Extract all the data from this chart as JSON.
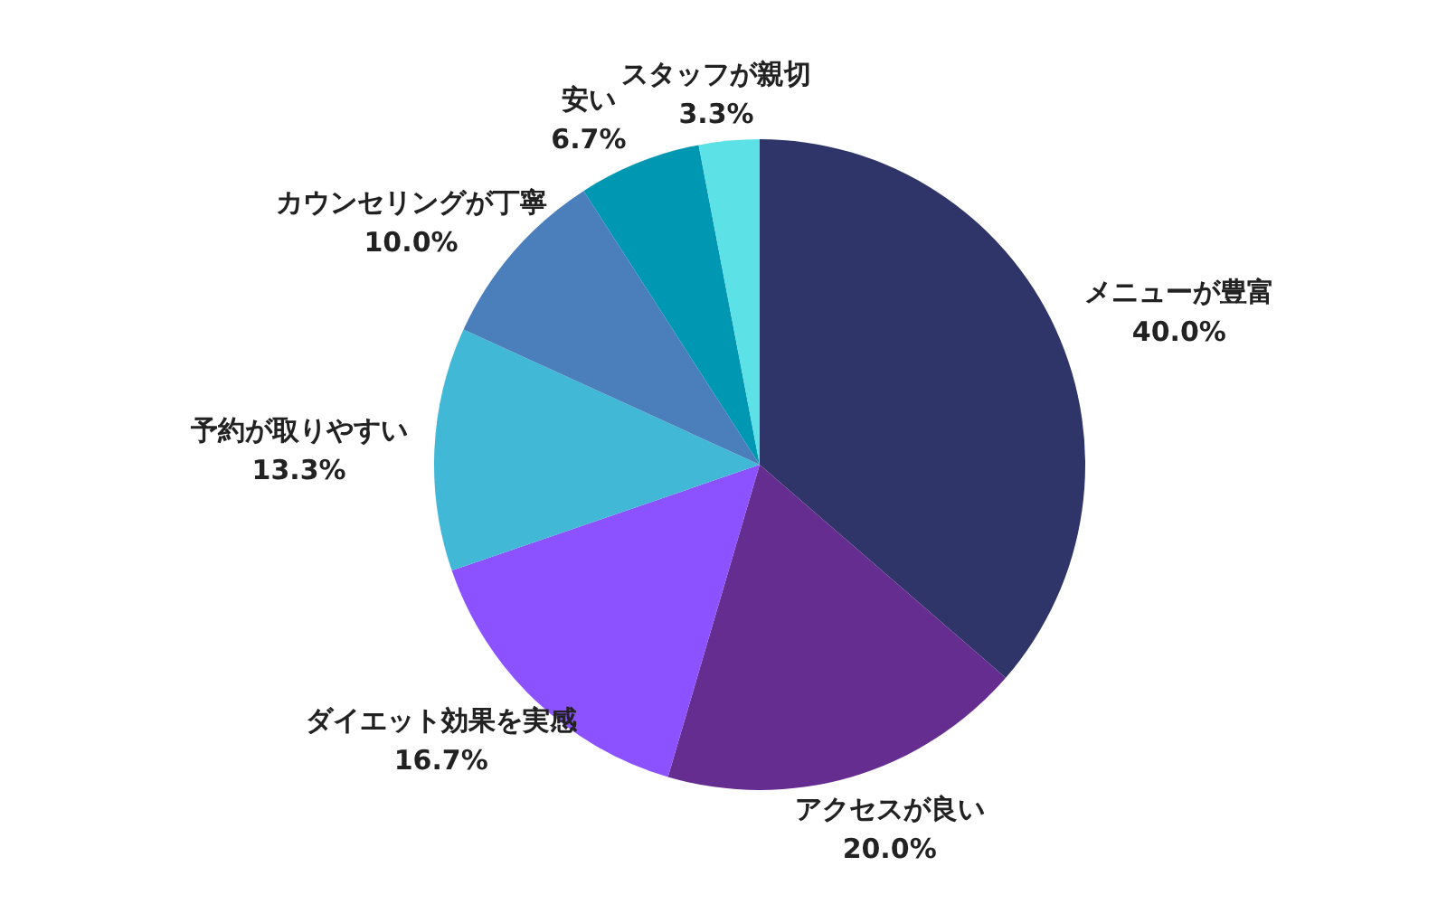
{
  "chart_data": {
    "type": "pie",
    "categories": [
      "メニューが豊富",
      "アクセスが良い",
      "ダイエット効果を実感",
      "予約が取りやすい",
      "カウンセリングが丁寧",
      "安い",
      "スタッフが親切"
    ],
    "values": [
      40.0,
      20.0,
      16.7,
      13.3,
      10.0,
      6.7,
      3.3
    ],
    "value_labels": [
      "40.0%",
      "20.0%",
      "16.7%",
      "13.3%",
      "10.0%",
      "6.7%",
      "3.3%"
    ],
    "colors": [
      "#2f3469",
      "#652d90",
      "#8c52ff",
      "#41b8d5",
      "#4a7fbb",
      "#0097b2",
      "#5ce1e6"
    ],
    "legend": false
  }
}
